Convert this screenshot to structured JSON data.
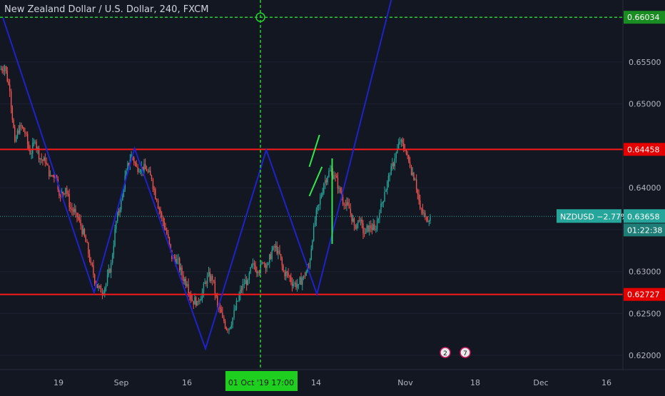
{
  "title": "New Zealand Dollar / U.S. Dollar, 240, FXCM",
  "colors": {
    "background": "#131722",
    "up": "#26a69a",
    "down": "#ef5350",
    "pattern_line": "#1e22c8",
    "resistance": "#ff1a1a",
    "crosshair": "#22d12b",
    "flag": "#2ee84c",
    "axis_text": "#b2b5be",
    "price_line": "#26a69a"
  },
  "chart_data": {
    "type": "candlestick",
    "title": "New Zealand Dollar / U.S. Dollar, 240, FXCM",
    "symbol": "NZDUSD",
    "timeframe": "240",
    "ylim": [
      0.6183,
      0.6624
    ],
    "y_ticks": [
      "0.62000",
      "0.62500",
      "0.63000",
      "0.63500",
      "0.64000",
      "0.65000",
      "0.65500"
    ],
    "x_ticks": [
      "19",
      "Sep",
      "16",
      "Oct",
      "14",
      "Nov",
      "18",
      "Dec",
      "16"
    ],
    "closes": [
      0.6545,
      0.6515,
      0.6455,
      0.6475,
      0.6465,
      0.644,
      0.6455,
      0.6435,
      0.643,
      0.6415,
      0.6415,
      0.639,
      0.64,
      0.6375,
      0.637,
      0.6355,
      0.6335,
      0.631,
      0.6285,
      0.6275,
      0.6285,
      0.631,
      0.636,
      0.6385,
      0.642,
      0.644,
      0.6425,
      0.6425,
      0.642,
      0.641,
      0.6385,
      0.6365,
      0.6345,
      0.6315,
      0.6315,
      0.6295,
      0.6285,
      0.6265,
      0.6265,
      0.6275,
      0.6295,
      0.629,
      0.626,
      0.6245,
      0.623,
      0.6245,
      0.6265,
      0.6285,
      0.629,
      0.631,
      0.63,
      0.631,
      0.631,
      0.633,
      0.6325,
      0.63,
      0.6295,
      0.6285,
      0.6285,
      0.6295,
      0.6305,
      0.6355,
      0.638,
      0.6405,
      0.642,
      0.6415,
      0.64,
      0.638,
      0.6375,
      0.6355,
      0.636,
      0.6345,
      0.6355,
      0.635,
      0.637,
      0.6395,
      0.6415,
      0.6435,
      0.6455,
      0.6445,
      0.6425,
      0.641,
      0.6375,
      0.6365,
      0.6365
    ],
    "levels": [
      {
        "value": 0.66034,
        "label": "0.66034",
        "style": "dashed",
        "color": "#22d12b"
      },
      {
        "value": 0.64458,
        "label": "0.64458",
        "style": "solid",
        "color": "#ff1a1a"
      },
      {
        "value": 0.62727,
        "label": "0.62727",
        "style": "solid",
        "color": "#ff1a1a"
      }
    ],
    "current": {
      "symbol": "NZDUSD",
      "change": "−2.77%",
      "price": "0.63658",
      "countdown": "01:22:38"
    },
    "crosshair": {
      "time_label": "01 Oct '19   17:00",
      "price": 0.66034
    },
    "pattern_points": [
      {
        "x": 0,
        "y": 0.6603
      },
      {
        "x": 18,
        "y": 0.6275
      },
      {
        "x": 26,
        "y": 0.6447
      },
      {
        "x": 40,
        "y": 0.6208
      },
      {
        "x": 52,
        "y": 0.6445
      },
      {
        "x": 62,
        "y": 0.6273
      },
      {
        "x": 77,
        "y": 0.6632
      }
    ],
    "flag_segments": [
      [
        {
          "x": 60.5,
          "y": 0.6425
        },
        {
          "x": 62.5,
          "y": 0.6463
        }
      ],
      [
        {
          "x": 60.5,
          "y": 0.639
        },
        {
          "x": 63.0,
          "y": 0.6425
        }
      ],
      [
        {
          "x": 65.0,
          "y": 0.6435
        },
        {
          "x": 65.0,
          "y": 0.6333
        }
      ]
    ],
    "event_badges": [
      "2",
      "7"
    ]
  }
}
